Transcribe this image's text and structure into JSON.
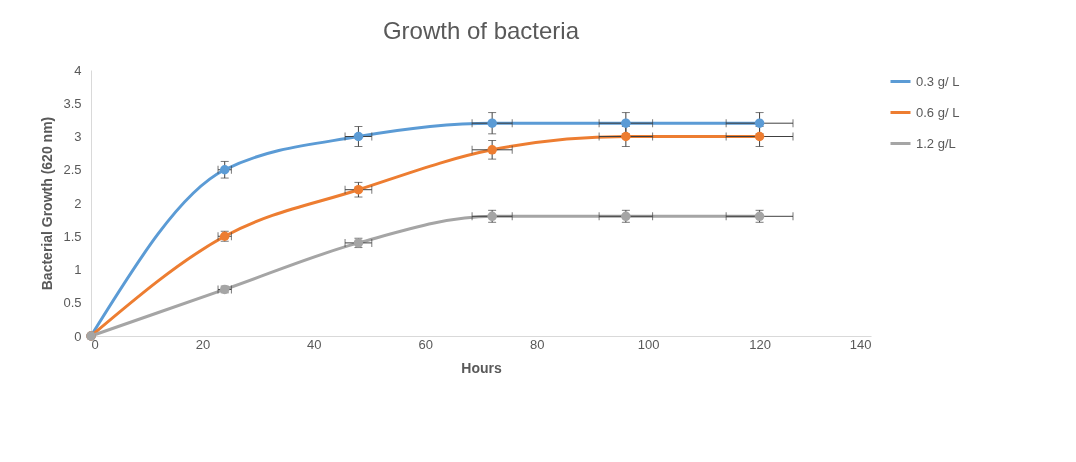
{
  "chart_data": {
    "type": "line",
    "title": "Growth of bacteria",
    "xlabel": "Hours",
    "ylabel": "Bacterial Growth  (620 nm)",
    "x": [
      0,
      24,
      48,
      72,
      96,
      120
    ],
    "series": [
      {
        "name": "0.3 g/ L",
        "color": "#5b9bd5",
        "values": [
          0,
          2.5,
          3.0,
          3.2,
          3.2,
          3.2
        ],
        "errors": [
          null,
          0.125,
          0.15,
          0.16,
          0.16,
          0.16
        ],
        "xerrors": [
          null,
          1.2,
          2.4,
          3.6,
          4.8,
          6
        ]
      },
      {
        "name": "0.6 g/ L",
        "color": "#ed7d31",
        "values": [
          0,
          1.5,
          2.2,
          2.8,
          3.0,
          3.0
        ],
        "errors": [
          null,
          0.075,
          0.11,
          0.14,
          0.15,
          0.15
        ],
        "xerrors": [
          null,
          1.2,
          2.4,
          3.6,
          4.8,
          6
        ]
      },
      {
        "name": "1.2 g/L",
        "color": "#a5a5a5",
        "values": [
          0,
          0.7,
          1.4,
          1.8,
          1.8,
          1.8
        ],
        "errors": [
          null,
          0.05,
          0.07,
          0.09,
          0.09,
          0.09
        ],
        "xerrors": [
          null,
          1.2,
          2.4,
          3.6,
          4.8,
          6
        ]
      }
    ],
    "xlim": [
      0,
      140
    ],
    "xticks": [
      0,
      20,
      40,
      60,
      80,
      100,
      120,
      140
    ],
    "ylim": [
      0,
      4
    ],
    "yticks": [
      0,
      0.5,
      1,
      1.5,
      2,
      2.5,
      3,
      3.5,
      4
    ],
    "grid": false,
    "legend": "top right",
    "marker": "circle",
    "line_style": "solid"
  }
}
